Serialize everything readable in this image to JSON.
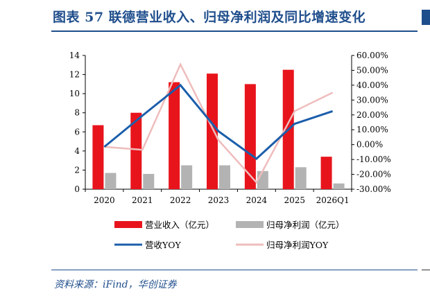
{
  "title": "图表 57   联德营业收入、归母净利润及同比增速变化",
  "source": "资料来源：iFind，华创证券",
  "chart_data": {
    "type": "bar",
    "categories": [
      "2020",
      "2021",
      "2022",
      "2023",
      "2024",
      "2025",
      "2026Q1"
    ],
    "y_left": {
      "min": 0,
      "max": 14,
      "ticks": [
        0,
        2,
        4,
        6,
        8,
        10,
        12,
        14
      ]
    },
    "y_right": {
      "min": -30,
      "max": 60,
      "ticks": [
        "-30.00%",
        "-20.00%",
        "-10.00%",
        "0.00%",
        "10.00%",
        "20.00%",
        "30.00%",
        "40.00%",
        "50.00%",
        "60.00%"
      ]
    },
    "series": [
      {
        "name": "营业收入（亿元）",
        "type": "bar",
        "axis": "left",
        "color": "#e8141c",
        "values": [
          6.7,
          8.0,
          11.2,
          12.1,
          11.0,
          12.5,
          3.4
        ]
      },
      {
        "name": "归母净利润（亿元）",
        "type": "bar",
        "axis": "left",
        "color": "#b3b3b3",
        "values": [
          1.7,
          1.6,
          2.5,
          2.5,
          1.9,
          2.3,
          0.6
        ]
      },
      {
        "name": "营收YOY",
        "type": "line",
        "axis": "right",
        "color": "#1b5eab",
        "values": [
          -1.5,
          19.5,
          40.0,
          9.0,
          -9.5,
          14.0,
          22.5
        ]
      },
      {
        "name": "归母净利润YOY",
        "type": "line",
        "axis": "right",
        "color": "#efbcbc",
        "values": [
          -1.5,
          -3.5,
          54.0,
          3.0,
          -25.5,
          22.5,
          35.0
        ]
      }
    ],
    "legend": [
      "营业收入（亿元）",
      "归母净利润（亿元）",
      "营收YOY",
      "归母净利润YOY"
    ],
    "legend_position": "bottom",
    "grid": false
  }
}
